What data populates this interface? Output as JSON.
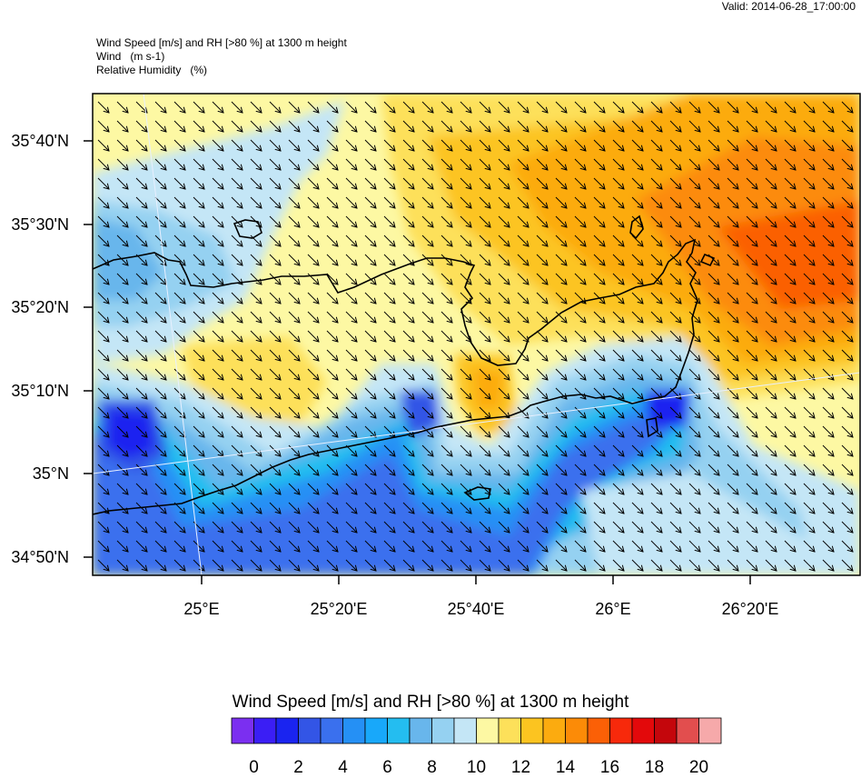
{
  "valid_label": "Valid: 2014-06-28_17:00:00",
  "header": {
    "line1": "Wind Speed [m/s] and RH [>80 %] at 1300 m height",
    "line2": "Wind   (m s-1)",
    "line3": "Relative Humidity   (%)"
  },
  "lat_labels": [
    "35°40'N",
    "35°30'N",
    "35°20'N",
    "35°10'N",
    "35°N",
    "34°50'N"
  ],
  "lon_labels": [
    "25°E",
    "25°20'E",
    "25°40'E",
    "26°E",
    "26°20'E"
  ],
  "colorbar": {
    "title": "Wind Speed [m/s] and RH [>80 %] at 1300 m height",
    "colors": [
      "#7b2ff0",
      "#3b1ef5",
      "#1a24f0",
      "#3355e6",
      "#3a70ee",
      "#2590f5",
      "#18a8fa",
      "#24bdf0",
      "#68b6ec",
      "#95d1f1",
      "#c4e6f6",
      "#fdf8a3",
      "#fde05a",
      "#fcc420",
      "#fcab0f",
      "#fc8b07",
      "#fb6006",
      "#f7290b",
      "#e3090b",
      "#c4060c",
      "#e24e4e",
      "#f6a9aa"
    ],
    "tick_labels": [
      "0",
      "2",
      "4",
      "6",
      "8",
      "10",
      "12",
      "14",
      "16",
      "18",
      "20"
    ]
  }
}
